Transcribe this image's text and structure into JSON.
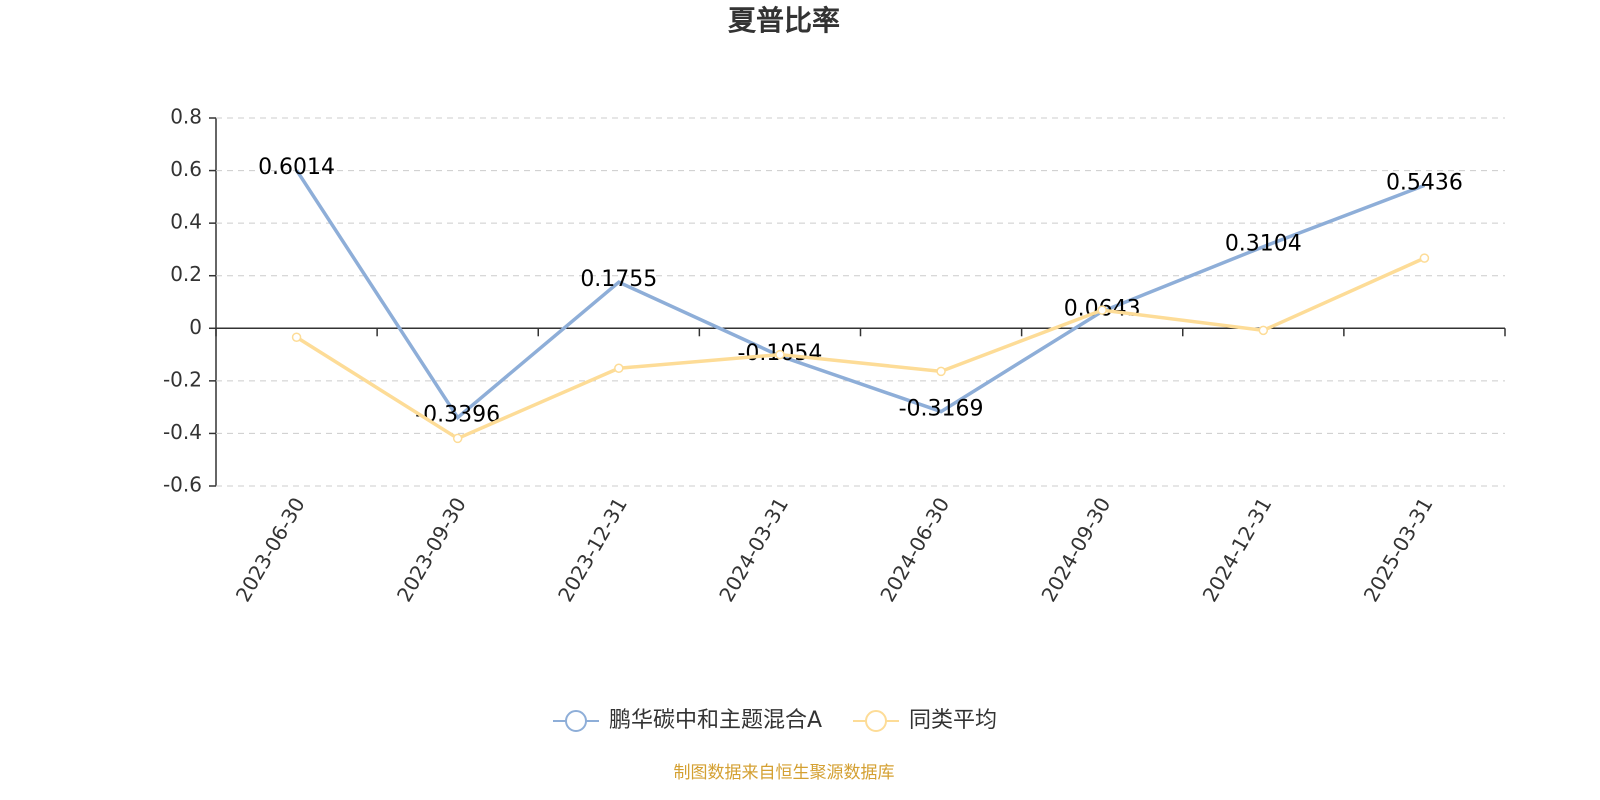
{
  "chart_data": {
    "type": "line",
    "title": "夏普比率",
    "categories": [
      "2023-06-30",
      "2023-09-30",
      "2023-12-31",
      "2024-03-31",
      "2024-06-30",
      "2024-09-30",
      "2024-12-31",
      "2025-03-31"
    ],
    "series": [
      {
        "name": "鹏华碳中和主题混合A",
        "color": "#8eaed8",
        "values": [
          0.6014,
          -0.3396,
          0.1755,
          -0.1054,
          -0.3169,
          0.0643,
          0.3104,
          0.5436
        ],
        "data_labels": true,
        "marker": false
      },
      {
        "name": "同类平均",
        "color": "#fddc97",
        "values": [
          -0.034,
          -0.419,
          -0.152,
          -0.1,
          -0.164,
          0.069,
          -0.008,
          0.267
        ],
        "data_labels": false,
        "marker": true
      }
    ],
    "ylim": [
      -0.6,
      0.8
    ],
    "yticks": [
      -0.6,
      -0.4,
      -0.2,
      0,
      0.2,
      0.4,
      0.6,
      0.8
    ],
    "grid": true,
    "legend": "bottom",
    "source": "制图数据来自恒生聚源数据库"
  }
}
